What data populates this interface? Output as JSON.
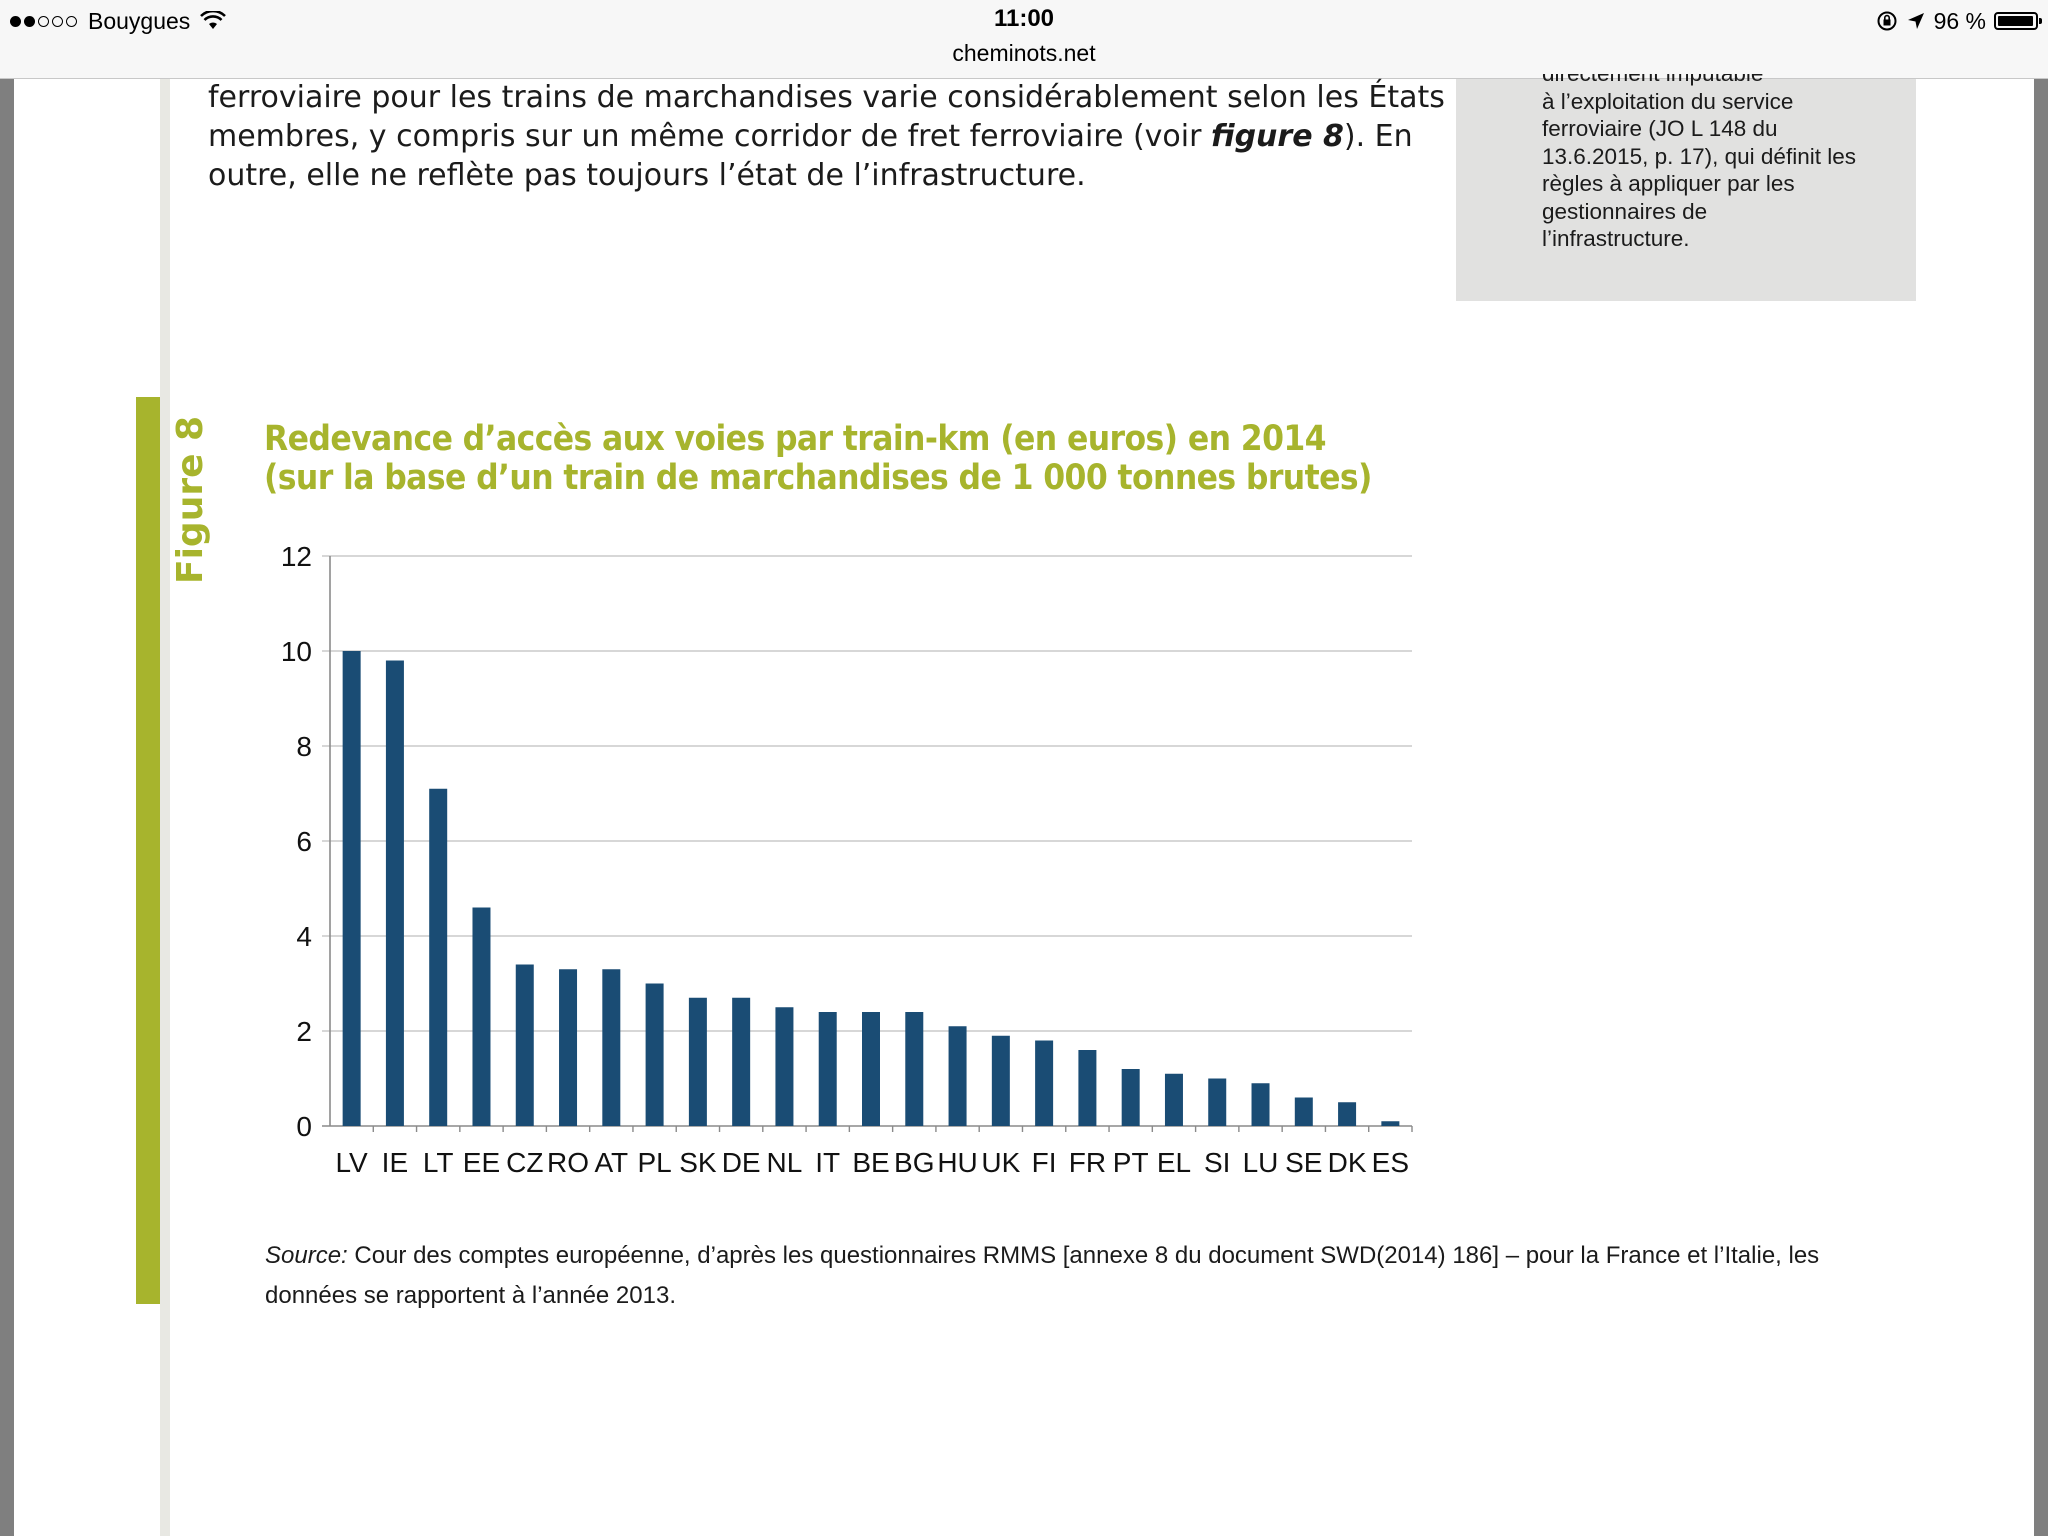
{
  "status_bar": {
    "carrier": "Bouygues",
    "time": "11:00",
    "url": "cheminots.net",
    "battery": "96 %",
    "battery_level": 0.96,
    "signal_bars_full": 2,
    "signal_bars_total": 5
  },
  "document": {
    "paragraph_lines": [
      "ferroviaire pour les trains de marchandises varie considérablement selon les États",
      "membres, y compris sur un même corridor de fret ferroviaire (voir ",
      "figure 8",
      "). En",
      "outre, elle ne reflète pas toujours l’état de l’infrastructure."
    ],
    "sidebox_lines": [
      "directement imputable",
      "à l’exploitation du service",
      "ferroviaire (JO L 148 du",
      "13.6.2015, p. 17), qui définit les",
      "règles à appliquer par les",
      "gestionnaires de",
      "l’infrastructure."
    ]
  },
  "figure": {
    "label": "Figure 8",
    "title_line1": "Redevance d’accès aux voies par train-km (en euros) en 2014",
    "title_line2": "(sur la base d’un train de marchandises de 1 000 tonnes brutes)",
    "source_label": "Source:",
    "source_text": " Cour des comptes européenne, d’après les questionnaires RMMS [annexe 8 du document SWD(2014) 186] – pour la France et l’Italie, les données se rapportent à l’année 2013."
  },
  "colors": {
    "accent": "#a7b42d",
    "bar": "#1a4c74",
    "grid": "#bfbfbf"
  },
  "chart_data": {
    "type": "bar",
    "categories": [
      "LV",
      "IE",
      "LT",
      "EE",
      "CZ",
      "RO",
      "AT",
      "PL",
      "SK",
      "DE",
      "NL",
      "IT",
      "BE",
      "BG",
      "HU",
      "UK",
      "FI",
      "FR",
      "PT",
      "EL",
      "SI",
      "LU",
      "SE",
      "DK",
      "ES"
    ],
    "values": [
      10.0,
      9.8,
      7.1,
      4.6,
      3.4,
      3.3,
      3.3,
      3.0,
      2.7,
      2.7,
      2.5,
      2.4,
      2.4,
      2.4,
      2.1,
      1.9,
      1.8,
      1.6,
      1.2,
      1.1,
      1.0,
      0.9,
      0.6,
      0.5,
      0.1
    ],
    "title": "Redevance d’accès aux voies par train-km (en euros) en 2014",
    "xlabel": "",
    "ylabel": "",
    "ylim": [
      0,
      12
    ],
    "yticks": [
      0,
      2,
      4,
      6,
      8,
      10,
      12
    ],
    "grid": true,
    "legend": "none"
  }
}
